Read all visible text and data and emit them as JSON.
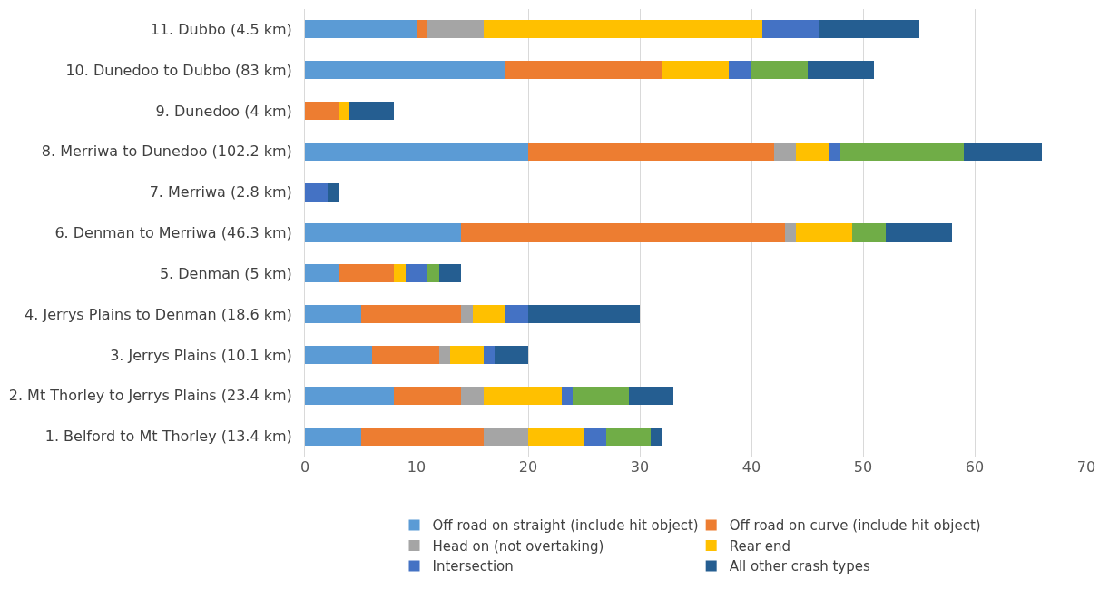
{
  "chart_data": {
    "type": "bar",
    "orientation": "horizontal",
    "stacked": true,
    "categories": [
      "11. Dubbo (4.5 km)",
      "10. Dunedoo to Dubbo (83 km)",
      "9. Dunedoo (4 km)",
      "8. Merriwa to Dunedoo (102.2 km)",
      "7. Merriwa (2.8 km)",
      "6. Denman to Merriwa (46.3 km)",
      "5. Denman (5 km)",
      "4. Jerrys Plains to Denman (18.6 km)",
      "3. Jerrys Plains (10.1 km)",
      "2. Mt Thorley to Jerrys Plains (23.4 km)",
      "1. Belford to Mt Thorley (13.4 km)"
    ],
    "series": [
      {
        "name": "Off road on straight (include hit object)",
        "color": "#5b9bd5",
        "values": [
          10,
          18,
          null,
          20,
          null,
          14,
          3,
          5,
          6,
          8,
          5
        ]
      },
      {
        "name": "Off road on curve (include hit object)",
        "color": "#ed7d31",
        "values": [
          1,
          14,
          3,
          22,
          null,
          29,
          5,
          9,
          6,
          6,
          11
        ]
      },
      {
        "name": "Head on (not overtaking)",
        "color": "#a5a5a5",
        "values": [
          5,
          null,
          null,
          2,
          null,
          1,
          null,
          1,
          1,
          2,
          4
        ]
      },
      {
        "name": "Rear end",
        "color": "#ffc000",
        "values": [
          25,
          6,
          1,
          3,
          null,
          5,
          1,
          3,
          3,
          7,
          5
        ]
      },
      {
        "name": "Intersection",
        "color": "#4472c4",
        "values": [
          5,
          2,
          null,
          1,
          2,
          null,
          2,
          2,
          1,
          1,
          2
        ]
      },
      {
        "color": "#70ad47",
        "values": [
          null,
          5,
          null,
          11,
          null,
          3,
          1,
          null,
          null,
          5,
          4
        ]
      },
      {
        "name": "All other crash types",
        "color": "#255e91",
        "values": [
          9,
          6,
          4,
          7,
          1,
          6,
          2,
          10,
          3,
          4,
          1
        ]
      }
    ],
    "xlim": [
      0,
      70
    ],
    "xticks": [
      0,
      10,
      20,
      30,
      40,
      50,
      60,
      70
    ],
    "grid": "x",
    "legend": "bottom"
  }
}
